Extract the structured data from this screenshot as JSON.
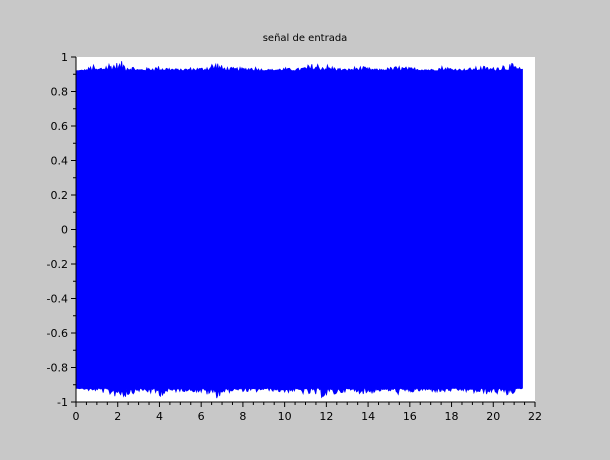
{
  "window": {
    "background_color": "#c8c8c8"
  },
  "chart_data": {
    "type": "line",
    "title": "señal de entrada",
    "xlabel": "",
    "ylabel": "",
    "xlim": [
      0,
      22
    ],
    "ylim": [
      -1,
      1
    ],
    "grid": false,
    "legend": "none",
    "colors": {
      "series": "#0000ff",
      "axes_background": "#ffffff",
      "axis": "#000000"
    },
    "x_ticks": [
      0,
      2,
      4,
      6,
      8,
      10,
      12,
      14,
      16,
      18,
      20,
      22
    ],
    "x_tick_labels": [
      "0",
      "2",
      "4",
      "6",
      "8",
      "10",
      "12",
      "14",
      "16",
      "18",
      "20",
      "22"
    ],
    "y_ticks": [
      1,
      0.8,
      0.6,
      0.4,
      0.2,
      0,
      -0.2,
      -0.4,
      -0.6,
      -0.8,
      -1
    ],
    "y_tick_labels": [
      "1",
      "0.8",
      "0.6",
      "0.4",
      "0.2",
      "0",
      "-0.2",
      "-0.4",
      "-0.6",
      "-0.8",
      "-1"
    ],
    "series": [
      {
        "x_range": [
          0,
          21.4
        ],
        "envelope": {
          "x": [
            0,
            0.5,
            0.8,
            1.0,
            1.5,
            1.8,
            2.0,
            2.3,
            2.6,
            3.0,
            3.5,
            4.0,
            4.5,
            5.0,
            5.5,
            6.0,
            6.5,
            6.8,
            7.0,
            7.5,
            8.0,
            8.5,
            9.0,
            9.5,
            10.0,
            10.5,
            11.0,
            11.5,
            12.0,
            12.5,
            13.0,
            13.5,
            14.0,
            14.5,
            15.0,
            15.5,
            16.0,
            16.5,
            17.0,
            17.5,
            18.0,
            18.5,
            19.0,
            19.5,
            20.0,
            20.3,
            20.6,
            21.0,
            21.4
          ],
          "upper": [
            0.92,
            0.93,
            0.96,
            0.93,
            0.97,
            0.98,
            0.97,
            0.98,
            0.96,
            0.93,
            0.94,
            0.95,
            0.94,
            0.93,
            0.94,
            0.94,
            0.97,
            0.98,
            0.95,
            0.94,
            0.94,
            0.95,
            0.93,
            0.93,
            0.94,
            0.93,
            0.95,
            0.97,
            0.96,
            0.94,
            0.93,
            0.95,
            0.94,
            0.93,
            0.94,
            0.95,
            0.94,
            0.94,
            0.93,
            0.95,
            0.94,
            0.93,
            0.94,
            0.95,
            0.94,
            0.96,
            0.97,
            0.96,
            0.93
          ],
          "lower": [
            -0.92,
            -0.93,
            -0.95,
            -0.93,
            -0.96,
            -0.97,
            -0.97,
            -0.98,
            -0.96,
            -0.94,
            -0.95,
            -0.97,
            -0.95,
            -0.94,
            -0.94,
            -0.95,
            -0.97,
            -0.98,
            -0.96,
            -0.94,
            -0.94,
            -0.95,
            -0.93,
            -0.94,
            -0.95,
            -0.94,
            -0.96,
            -0.97,
            -0.98,
            -0.96,
            -0.94,
            -0.95,
            -0.96,
            -0.94,
            -0.94,
            -0.96,
            -0.95,
            -0.94,
            -0.94,
            -0.95,
            -0.94,
            -0.94,
            -0.95,
            -0.96,
            -0.95,
            -0.96,
            -0.97,
            -0.95,
            -0.92
          ]
        }
      }
    ]
  }
}
